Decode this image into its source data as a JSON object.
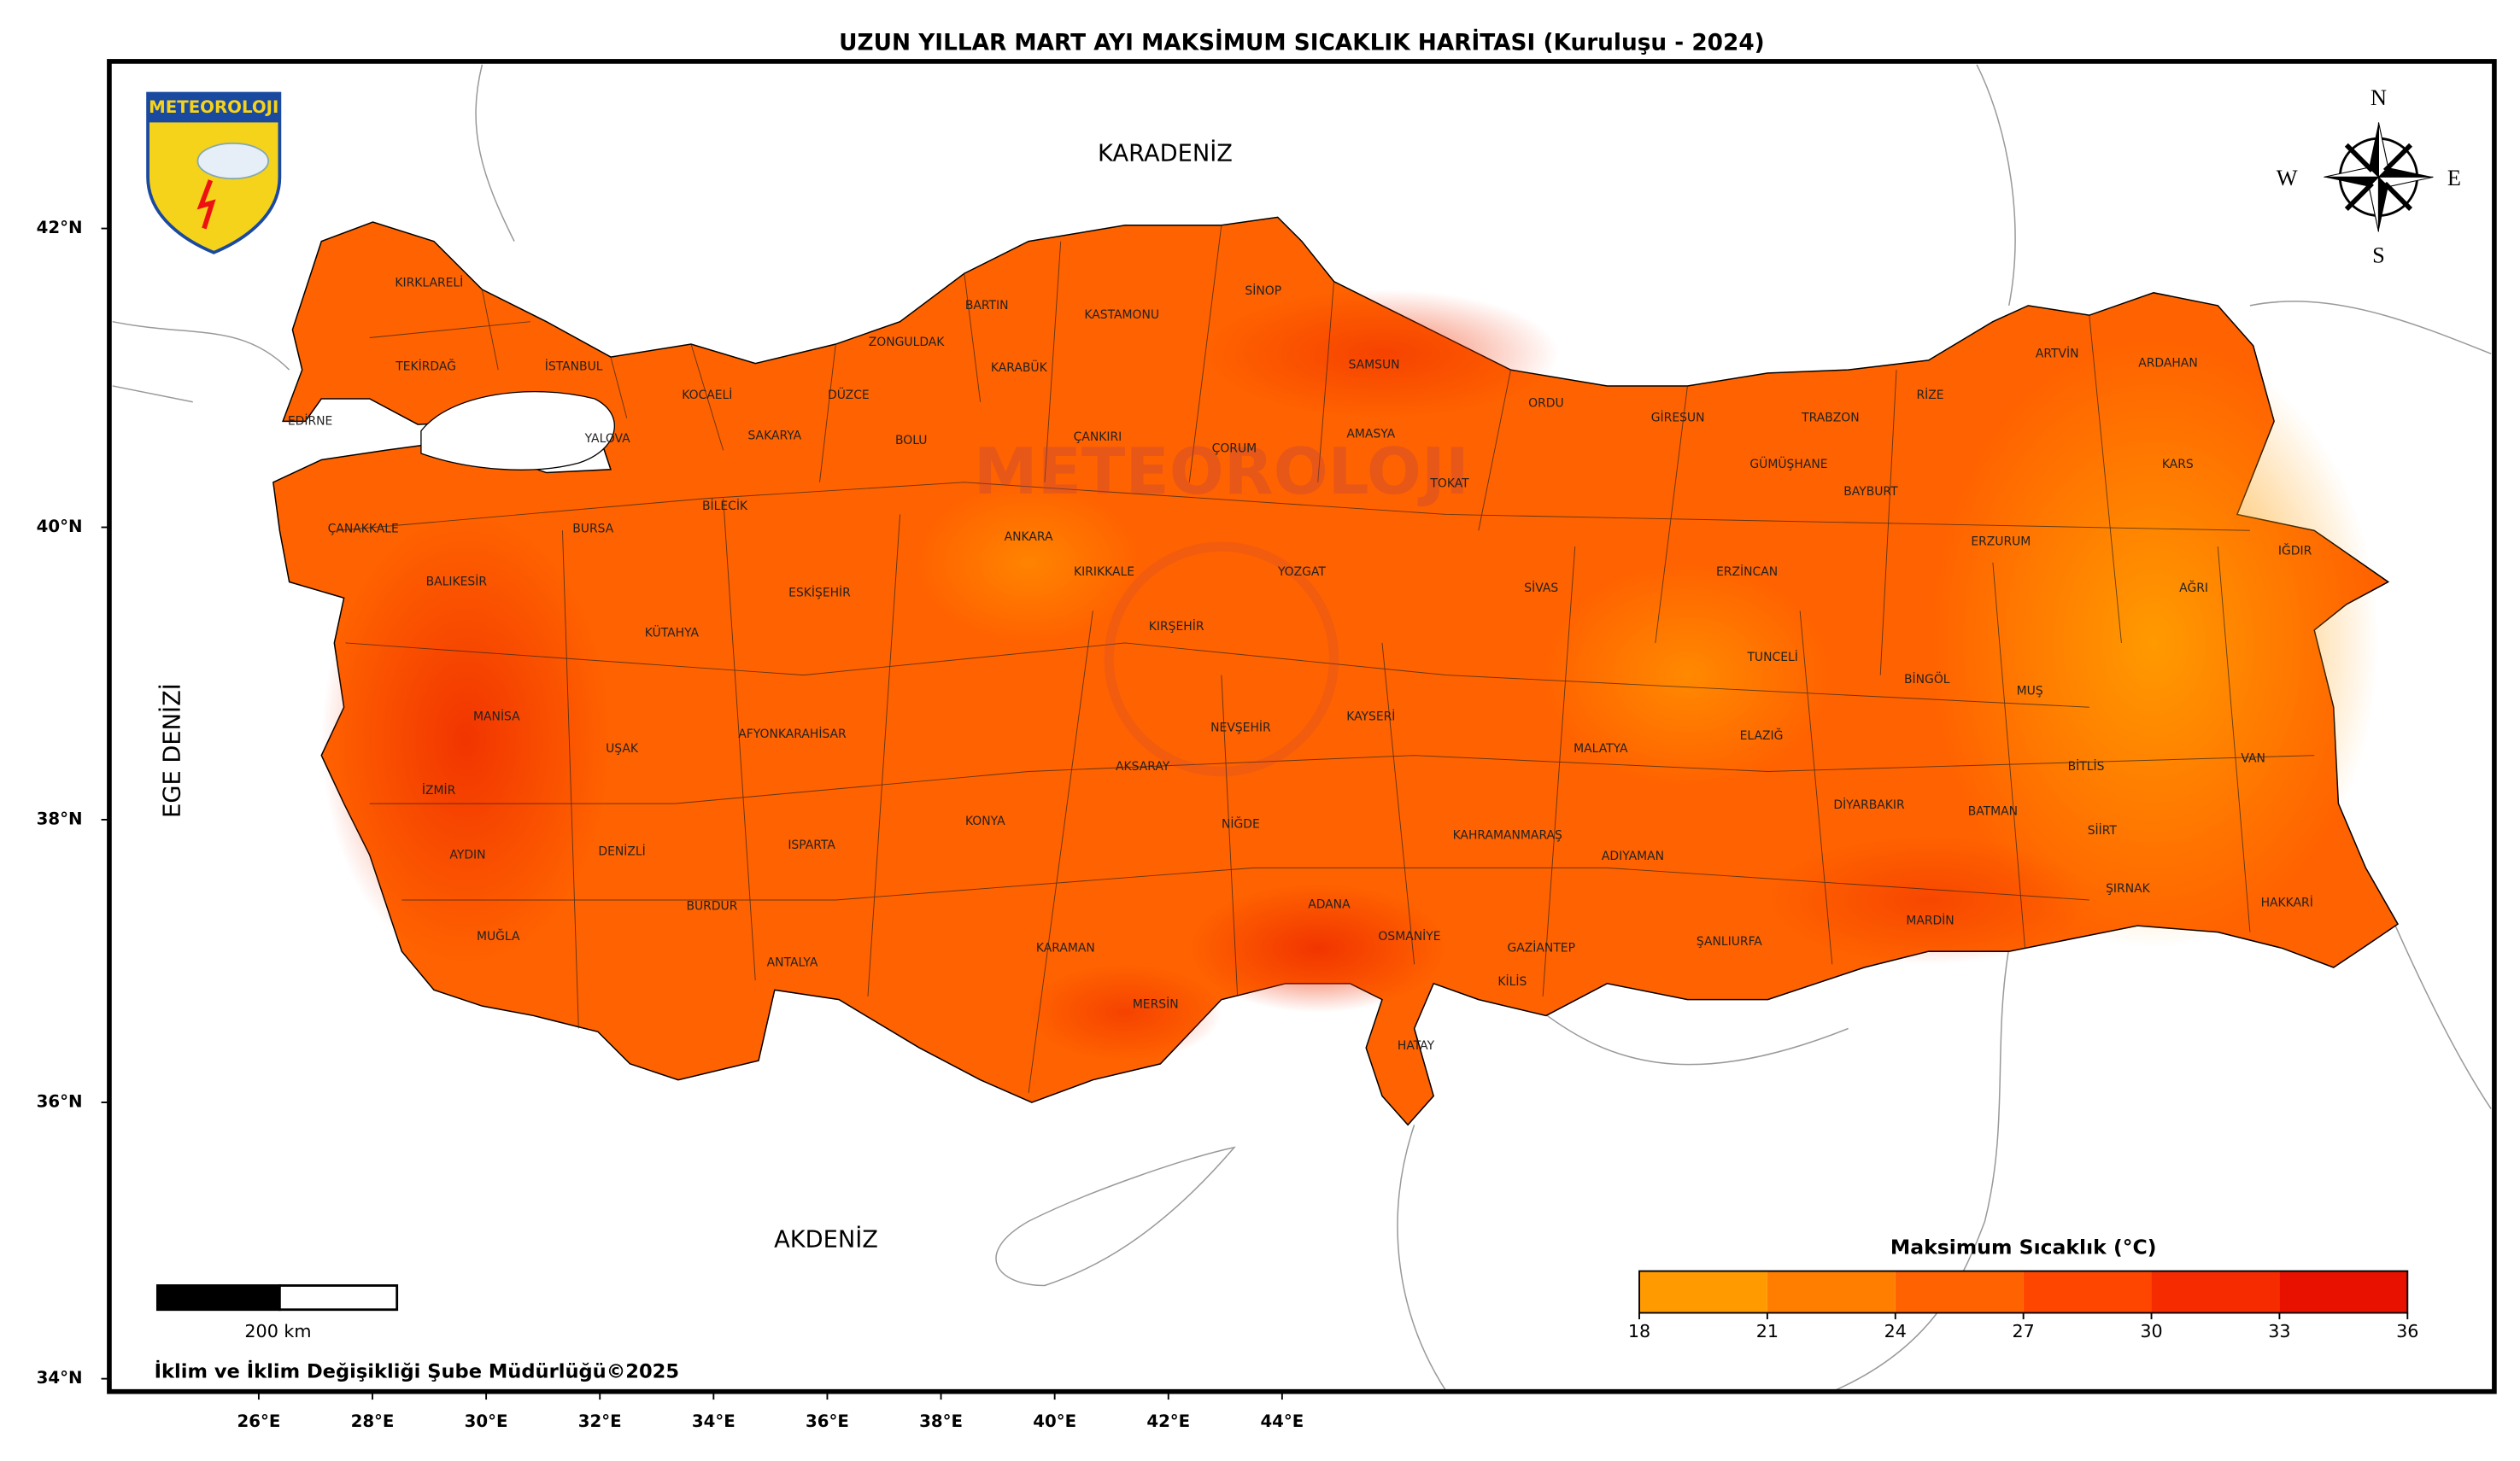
{
  "title": "UZUN YILLAR MART AYI MAKSİMUM SICAKLIK HARİTASI (Kuruluşu - 2024)",
  "seas": [
    "KARADENİZ",
    "AKDENİZ",
    "EGE DENİZİ"
  ],
  "logo": "METEOROLOJI",
  "watermark": "METEOROLOJI",
  "compass": [
    "N",
    "E",
    "S",
    "W"
  ],
  "lat_labels": [
    "42°N",
    "40°N",
    "38°N",
    "36°N",
    "34°N"
  ],
  "lon_labels": [
    "26°E",
    "28°E",
    "30°E",
    "32°E",
    "34°E",
    "36°E",
    "38°E",
    "40°E",
    "42°E",
    "44°E"
  ],
  "scale_bar": "200 km",
  "credit": "İklim ve İklim Değişikliği Şube Müdürlüğü©2025",
  "legend": {
    "title": "Maksimum Sıcaklık (°C)",
    "ticks": [
      18,
      21,
      24,
      27,
      30,
      33,
      36
    ],
    "colors": [
      "#ff9a00",
      "#ff7e00",
      "#ff6200",
      "#ff4600",
      "#f72b00",
      "#e81100"
    ]
  },
  "provinces": [
    "KIRKLARELİ",
    "TEKİRDAĞ",
    "İSTANBUL",
    "EDİRNE",
    "YALOVA",
    "KOCAELİ",
    "SAKARYA",
    "DÜZCE",
    "ZONGULDAK",
    "BARTIN",
    "KARABÜK",
    "KASTAMONU",
    "SİNOP",
    "SAMSUN",
    "BOLU",
    "ÇANKIRI",
    "ÇORUM",
    "AMASYA",
    "TOKAT",
    "ORDU",
    "GİRESUN",
    "TRABZON",
    "RİZE",
    "ARTVİN",
    "ARDAHAN",
    "KARS",
    "GÜMÜŞHANE",
    "BAYBURT",
    "ERZURUM",
    "IĞDIR",
    "AĞRI",
    "ERZİNCAN",
    "SİVAS",
    "YOZGAT",
    "KIRIKKALE",
    "ANKARA",
    "ÇANAKKALE",
    "BURSA",
    "BİLECİK",
    "BALIKESİR",
    "ESKİŞEHİR",
    "KÜTAHYA",
    "KIRŞEHİR",
    "TUNCELİ",
    "BİNGÖL",
    "MUŞ",
    "MANİSA",
    "KAYSERİ",
    "NEVŞEHİR",
    "AFYONKARAHİSAR",
    "UŞAK",
    "MALATYA",
    "ELAZIĞ",
    "İZMİR",
    "AKSARAY",
    "BİTLİS",
    "VAN",
    "DİYARBAKIR",
    "BATMAN",
    "SİİRT",
    "KONYA",
    "NİĞDE",
    "KAHRAMANMARAŞ",
    "DENİZLİ",
    "AYDIN",
    "ISPARTA",
    "ADIYAMAN",
    "ŞIRNAK",
    "HAKKARİ",
    "BURDUR",
    "ADANA",
    "MARDİN",
    "OSMANİYE",
    "GAZİANTEP",
    "ŞANLIURFA",
    "KARAMAN",
    "MUĞLA",
    "KİLİS",
    "ANTALYA",
    "MERSİN",
    "HATAY"
  ]
}
